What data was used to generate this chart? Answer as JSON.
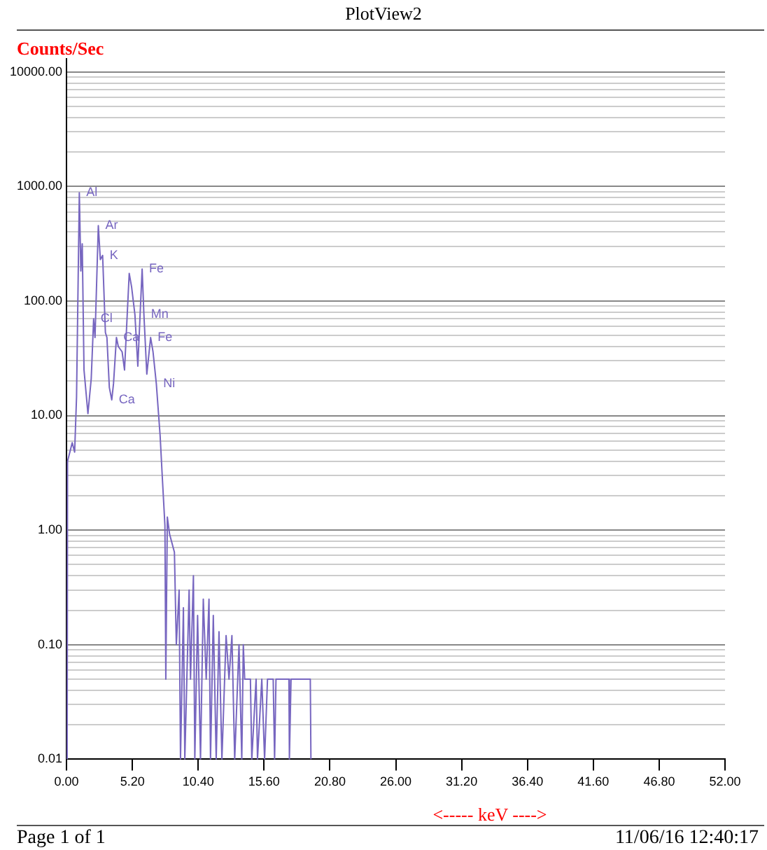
{
  "chart_data": {
    "type": "line",
    "title": "PlotView2",
    "ylabel": "Counts/Sec",
    "xlabel": "<----- keV ---->",
    "log": "y",
    "grid": "y",
    "legend": false,
    "marker": "none",
    "line_style": "solid",
    "xlim": [
      0,
      52
    ],
    "xticks": [
      {
        "value": 0,
        "label": "0.00"
      },
      {
        "value": 5.2,
        "label": "5.20"
      },
      {
        "value": 10.4,
        "label": "10.40"
      },
      {
        "value": 15.6,
        "label": "15.60"
      },
      {
        "value": 20.8,
        "label": "20.80"
      },
      {
        "value": 26,
        "label": "26.00"
      },
      {
        "value": 31.2,
        "label": "31.20"
      },
      {
        "value": 36.4,
        "label": "36.40"
      },
      {
        "value": 41.6,
        "label": "41.60"
      },
      {
        "value": 46.8,
        "label": "46.80"
      },
      {
        "value": 52,
        "label": "52.00"
      }
    ],
    "ylim": [
      0.01,
      13000
    ],
    "yticks": [
      {
        "value": 0.01,
        "label": "0.01"
      },
      {
        "value": 0.02,
        "label": null
      },
      {
        "value": 0.03,
        "label": null
      },
      {
        "value": 0.04,
        "label": null
      },
      {
        "value": 0.05,
        "label": null
      },
      {
        "value": 0.06,
        "label": null
      },
      {
        "value": 0.07,
        "label": null
      },
      {
        "value": 0.08,
        "label": null
      },
      {
        "value": 0.09,
        "label": null
      },
      {
        "value": 0.1,
        "label": "0.10"
      },
      {
        "value": 0.2,
        "label": null
      },
      {
        "value": 0.3,
        "label": null
      },
      {
        "value": 0.4,
        "label": null
      },
      {
        "value": 0.5,
        "label": null
      },
      {
        "value": 0.6,
        "label": null
      },
      {
        "value": 0.7,
        "label": null
      },
      {
        "value": 0.8,
        "label": null
      },
      {
        "value": 0.9,
        "label": null
      },
      {
        "value": 1,
        "label": "1.00"
      },
      {
        "value": 2,
        "label": null
      },
      {
        "value": 3,
        "label": null
      },
      {
        "value": 4,
        "label": null
      },
      {
        "value": 5,
        "label": null
      },
      {
        "value": 6,
        "label": null
      },
      {
        "value": 7,
        "label": null
      },
      {
        "value": 8,
        "label": null
      },
      {
        "value": 9,
        "label": null
      },
      {
        "value": 10,
        "label": "10.00"
      },
      {
        "value": 20,
        "label": null
      },
      {
        "value": 30,
        "label": null
      },
      {
        "value": 40,
        "label": null
      },
      {
        "value": 50,
        "label": null
      },
      {
        "value": 60,
        "label": null
      },
      {
        "value": 70,
        "label": null
      },
      {
        "value": 80,
        "label": null
      },
      {
        "value": 90,
        "label": null
      },
      {
        "value": 100,
        "label": "100.00"
      },
      {
        "value": 200,
        "label": null
      },
      {
        "value": 300,
        "label": null
      },
      {
        "value": 400,
        "label": null
      },
      {
        "value": 500,
        "label": null
      },
      {
        "value": 600,
        "label": null
      },
      {
        "value": 700,
        "label": null
      },
      {
        "value": 800,
        "label": null
      },
      {
        "value": 900,
        "label": null
      },
      {
        "value": 1000,
        "label": "1000.00"
      },
      {
        "value": 2000,
        "label": null
      },
      {
        "value": 3000,
        "label": null
      },
      {
        "value": 4000,
        "label": null
      },
      {
        "value": 5000,
        "label": null
      },
      {
        "value": 6000,
        "label": null
      },
      {
        "value": 7000,
        "label": null
      },
      {
        "value": 8000,
        "label": null
      },
      {
        "value": 9000,
        "label": null
      },
      {
        "value": 10000,
        "label": "10000.00"
      }
    ],
    "x": [
      0.05,
      0.08,
      0.45,
      0.64,
      0.79,
      1.01,
      1.13,
      1.24,
      1.38,
      1.69,
      1.95,
      2.14,
      2.25,
      2.51,
      2.67,
      2.85,
      3.07,
      3.19,
      3.38,
      3.57,
      3.71,
      3.94,
      4.09,
      4.39,
      4.58,
      4.95,
      5.14,
      5.4,
      5.63,
      5.97,
      6.11,
      6.34,
      6.64,
      6.83,
      7.09,
      7.39,
      7.57,
      7.77,
      7.84,
      7.96,
      8.14,
      8.52,
      8.67,
      8.89,
      9.0,
      9.23,
      9.34,
      9.68,
      9.79,
      10.02,
      10.13,
      10.35,
      10.58,
      10.8,
      11.03,
      11.25,
      11.37,
      11.59,
      11.82,
      12.04,
      12.27,
      12.6,
      12.83,
      13.06,
      13.28,
      13.62,
      13.84,
      13.96,
      14.07,
      14.52,
      14.63,
      14.97,
      15.08,
      15.42,
      15.64,
      15.87,
      16.32,
      16.43,
      16.54,
      17.56,
      17.6,
      17.73,
      19.25,
      19.3
    ],
    "series": [
      {
        "color": "#7766c0",
        "values": [
          0.01,
          4.0,
          5.8,
          4.8,
          14.5,
          880,
          183,
          316,
          25,
          10.4,
          21,
          70,
          48,
          455,
          230,
          250,
          53,
          48,
          17.6,
          13.7,
          19,
          48,
          40,
          36,
          25,
          174,
          132,
          76,
          27,
          190,
          76,
          23,
          48,
          36,
          19,
          6.7,
          2.8,
          1.1,
          0.05,
          1.3,
          0.92,
          0.64,
          0.1,
          0.3,
          0.01,
          0.21,
          0.01,
          0.3,
          0.05,
          0.4,
          0.01,
          0.18,
          0.01,
          0.25,
          0.05,
          0.25,
          0.01,
          0.18,
          0.01,
          0.13,
          0.01,
          0.12,
          0.05,
          0.12,
          0.01,
          0.1,
          0.01,
          0.1,
          0.05,
          0.05,
          0.01,
          0.05,
          0.01,
          0.05,
          0.01,
          0.05,
          0.05,
          0.01,
          0.05,
          0.05,
          0.01,
          0.05,
          0.05,
          0.01
        ]
      }
    ],
    "annotations": [
      {
        "text": "Al",
        "x": 1.01,
        "y": 880
      },
      {
        "text": "Ar",
        "x": 2.51,
        "y": 455
      },
      {
        "text": "K",
        "x": 2.85,
        "y": 250
      },
      {
        "text": "Fe",
        "x": 5.97,
        "y": 190
      },
      {
        "text": "Cl",
        "x": 2.14,
        "y": 70
      },
      {
        "text": "Mn",
        "x": 6.11,
        "y": 76
      },
      {
        "text": "Ca",
        "x": 3.94,
        "y": 48
      },
      {
        "text": "Fe",
        "x": 6.64,
        "y": 48
      },
      {
        "text": "Ni",
        "x": 7.09,
        "y": 19
      },
      {
        "text": "Ca",
        "x": 3.57,
        "y": 13.7
      },
      "Page 1 of 1",
      "11/06/16 12:40:17"
    ]
  }
}
